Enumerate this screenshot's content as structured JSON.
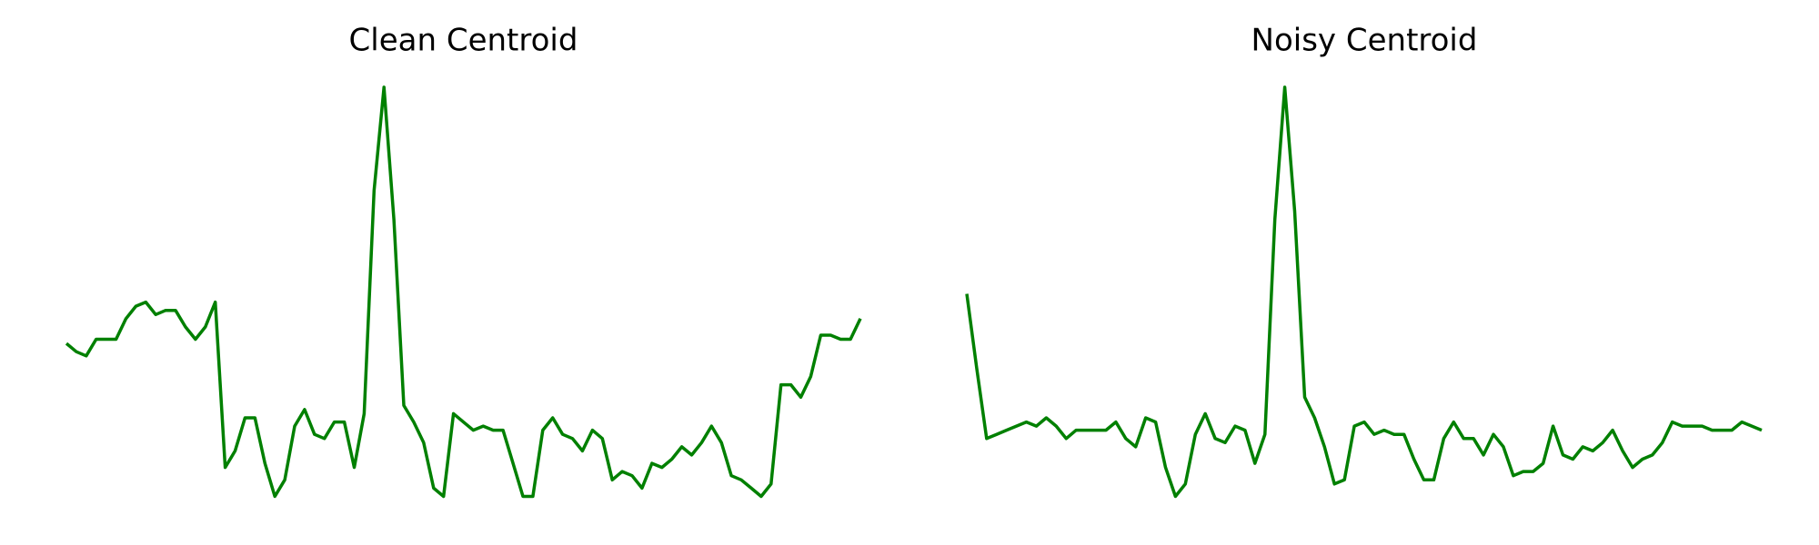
{
  "chart_data": [
    {
      "type": "line",
      "title": "Clean Centroid",
      "color": "#008000",
      "ylim": [
        0,
        1
      ],
      "values": [
        0.38,
        0.36,
        0.35,
        0.39,
        0.39,
        0.39,
        0.44,
        0.47,
        0.48,
        0.45,
        0.46,
        0.46,
        0.42,
        0.39,
        0.42,
        0.48,
        0.08,
        0.12,
        0.2,
        0.2,
        0.09,
        0.01,
        0.05,
        0.18,
        0.22,
        0.16,
        0.15,
        0.19,
        0.19,
        0.08,
        0.21,
        0.75,
        1.0,
        0.68,
        0.23,
        0.19,
        0.14,
        0.03,
        0.01,
        0.21,
        0.19,
        0.17,
        0.18,
        0.17,
        0.17,
        0.09,
        0.01,
        0.01,
        0.17,
        0.2,
        0.16,
        0.15,
        0.12,
        0.17,
        0.15,
        0.05,
        0.07,
        0.06,
        0.03,
        0.09,
        0.08,
        0.1,
        0.13,
        0.11,
        0.14,
        0.18,
        0.14,
        0.06,
        0.05,
        0.03,
        0.01,
        0.04,
        0.28,
        0.28,
        0.25,
        0.3,
        0.4,
        0.4,
        0.39,
        0.39,
        0.44
      ]
    },
    {
      "type": "line",
      "title": "Noisy Centroid",
      "color": "#008000",
      "ylim": [
        0,
        1
      ],
      "values": [
        0.5,
        0.32,
        0.15,
        0.16,
        0.17,
        0.18,
        0.19,
        0.18,
        0.2,
        0.18,
        0.15,
        0.17,
        0.17,
        0.17,
        0.17,
        0.19,
        0.15,
        0.13,
        0.2,
        0.19,
        0.08,
        0.01,
        0.04,
        0.16,
        0.21,
        0.15,
        0.14,
        0.18,
        0.17,
        0.09,
        0.16,
        0.68,
        1.0,
        0.7,
        0.25,
        0.2,
        0.13,
        0.04,
        0.05,
        0.18,
        0.19,
        0.16,
        0.17,
        0.16,
        0.16,
        0.1,
        0.05,
        0.05,
        0.15,
        0.19,
        0.15,
        0.15,
        0.11,
        0.16,
        0.13,
        0.06,
        0.07,
        0.07,
        0.09,
        0.18,
        0.11,
        0.1,
        0.13,
        0.12,
        0.14,
        0.17,
        0.12,
        0.08,
        0.1,
        0.11,
        0.14,
        0.19,
        0.18,
        0.18,
        0.18,
        0.17,
        0.17,
        0.17,
        0.19,
        0.18,
        0.17
      ]
    }
  ]
}
